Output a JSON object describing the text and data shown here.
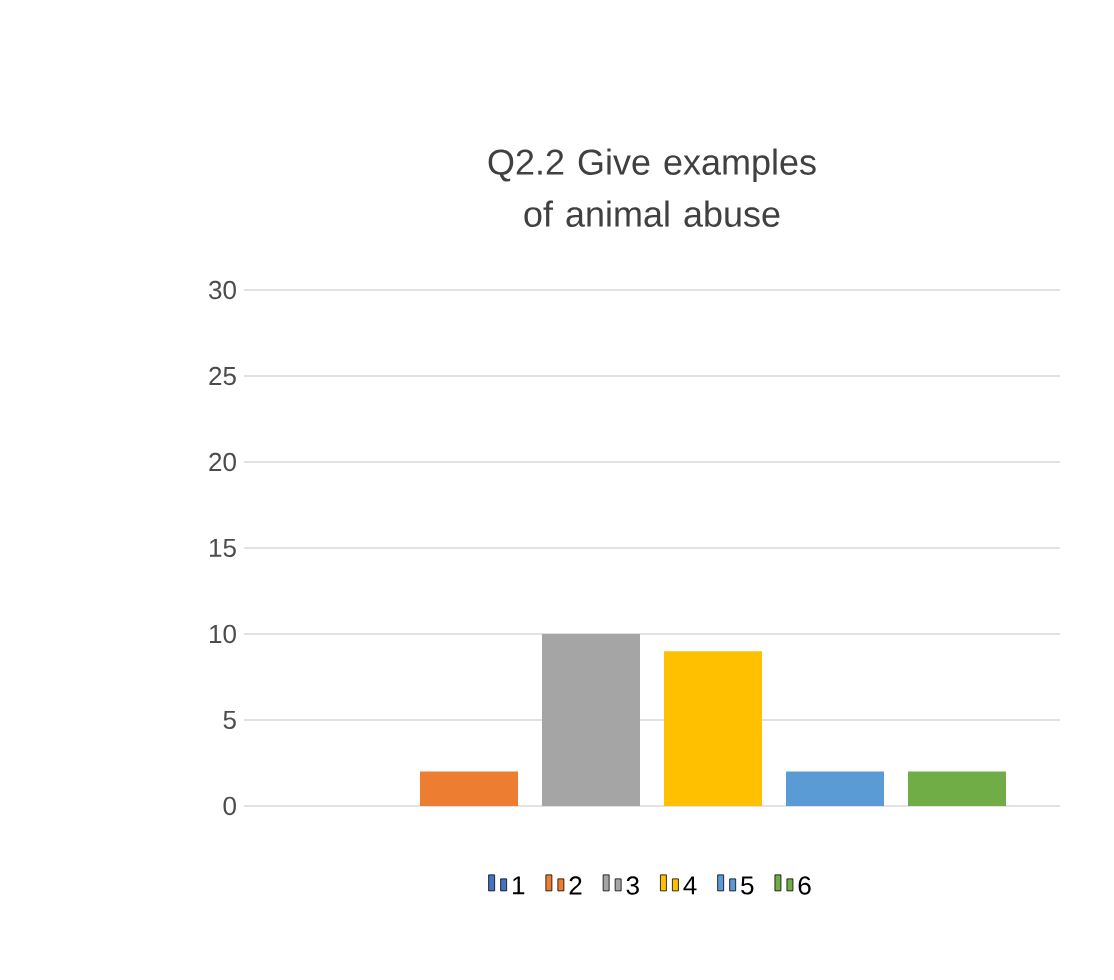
{
  "chart_data": {
    "type": "bar",
    "title": "Q2.2 Give examples of animal abuse",
    "categories": [
      null
    ],
    "series": [
      {
        "name": "1",
        "color": "#4472c4",
        "values": [
          0
        ]
      },
      {
        "name": "2",
        "color": "#ed7d31",
        "values": [
          2
        ]
      },
      {
        "name": "3",
        "color": "#a5a5a5",
        "values": [
          10
        ]
      },
      {
        "name": "4",
        "color": "#ffc000",
        "values": [
          9
        ]
      },
      {
        "name": "5",
        "color": "#5b9bd5",
        "values": [
          2
        ]
      },
      {
        "name": "6",
        "color": "#70ad47",
        "values": [
          2
        ]
      }
    ],
    "ylim": [
      0,
      30
    ],
    "yticks": [
      0,
      5,
      10,
      15,
      20,
      25,
      30
    ],
    "grid": "y",
    "legend": "bottom"
  }
}
